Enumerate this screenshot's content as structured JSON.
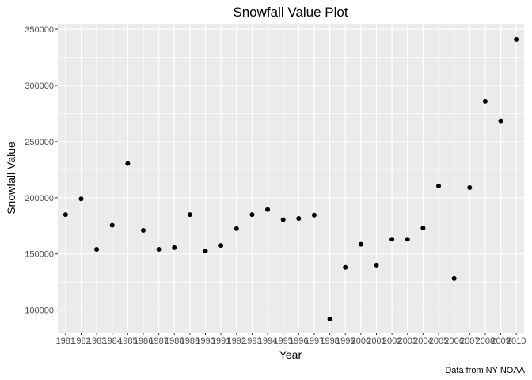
{
  "chart_data": {
    "type": "scatter",
    "title": "Snowfall Value Plot",
    "xlabel": "Year",
    "ylabel": "Snowfall Value",
    "caption": "Data from NY NOAA",
    "grid": true,
    "legend": "none",
    "background_color": "#ebebeb",
    "gridline_color": "#ffffff",
    "point_color": "#000000",
    "x_ticks": [
      "1981",
      "1982",
      "1983",
      "1984",
      "1985",
      "1986",
      "1987",
      "1988",
      "1989",
      "1990",
      "1991",
      "1992",
      "1993",
      "1994",
      "1995",
      "1996",
      "1997",
      "1998",
      "1999",
      "2000",
      "2001",
      "2002",
      "2003",
      "2004",
      "2005",
      "2006",
      "2007",
      "2008",
      "2009",
      "2010"
    ],
    "y_ticks": [
      "100000",
      "150000",
      "200000",
      "250000",
      "300000",
      "350000"
    ],
    "xlim": [
      1980.5,
      2010.5
    ],
    "ylim": [
      80000,
      355000
    ],
    "x": [
      1981,
      1982,
      1983,
      1984,
      1985,
      1986,
      1987,
      1988,
      1989,
      1990,
      1991,
      1992,
      1993,
      1994,
      1995,
      1996,
      1997,
      1998,
      1999,
      2000,
      2001,
      2002,
      2003,
      2004,
      2005,
      2006,
      2007,
      2008,
      2009,
      2010
    ],
    "y": [
      185000,
      199000,
      154000,
      175500,
      230500,
      171000,
      154000,
      155500,
      185000,
      152500,
      157500,
      172500,
      185000,
      189500,
      180500,
      181500,
      184500,
      92000,
      138000,
      158500,
      140000,
      163000,
      163000,
      173000,
      210500,
      128000,
      209000,
      286000,
      268500,
      341000
    ]
  }
}
